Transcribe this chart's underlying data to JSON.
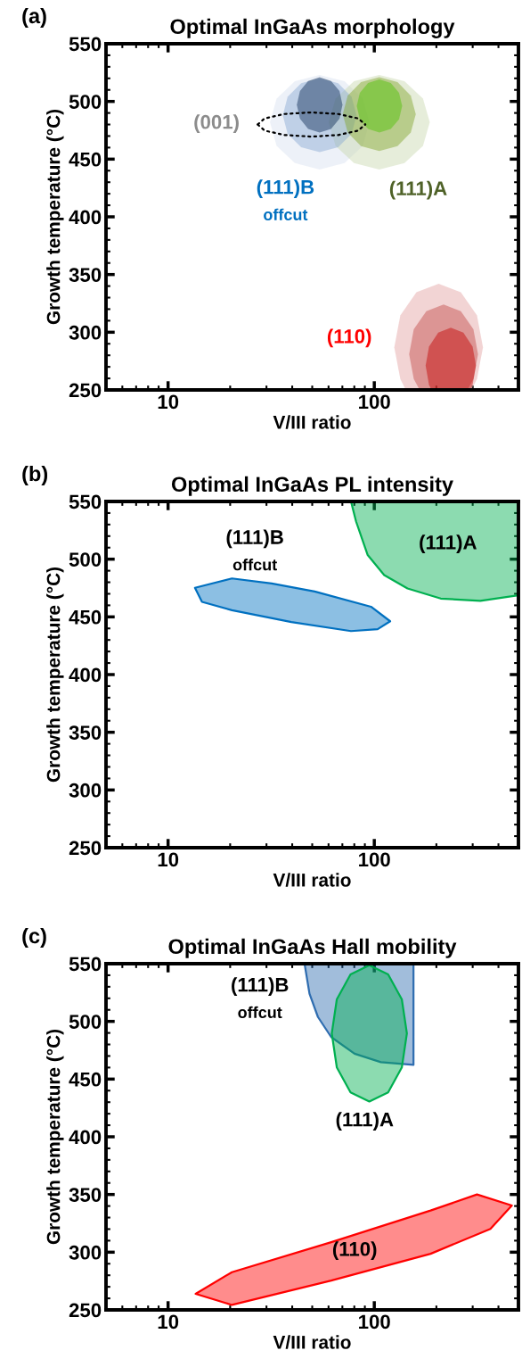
{
  "chart_data": [
    {
      "type": "area",
      "title": "Optimal InGaAs morphology",
      "xlabel": "V/III ratio",
      "ylabel": "Growth temperature (°C)",
      "log": "x",
      "xlim": [
        5,
        500
      ],
      "xticks": [
        10,
        100
      ],
      "ylim": [
        250,
        550
      ],
      "yticks": [
        250,
        300,
        350,
        400,
        450,
        500,
        550
      ],
      "series": [
        {
          "color": "#d7e0f0",
          "x": [
            94.6,
            87.9,
            71.7,
            54.3,
            41.2,
            33.6,
            31.2,
            33.6,
            41.2,
            54.3,
            71.7,
            87.9
          ],
          "values": [
            482,
            502.5,
            517.5,
            523,
            517.5,
            502.5,
            482,
            461.5,
            446.5,
            441,
            446.5,
            461.5
          ]
        },
        {
          "color": "#c8d8ad",
          "x": [
            185.8,
            172.2,
            140.1,
            105.7,
            79.7,
            64.9,
            60.1,
            64.9,
            79.7,
            105.7,
            140.1,
            172.2
          ],
          "values": [
            482,
            502.5,
            517.5,
            523,
            517.5,
            502.5,
            482,
            461.5,
            446.5,
            441,
            446.5,
            461.5
          ]
        },
        {
          "color": "#88a9d3",
          "x": [
            82.0,
            77.6,
            66.8,
            54.3,
            44.2,
            38.0,
            36.0,
            38.0,
            44.2,
            54.3,
            66.8,
            77.6
          ],
          "values": [
            488,
            504,
            515.7,
            520,
            515.7,
            504,
            488,
            472,
            460.3,
            456,
            460.3,
            472
          ]
        },
        {
          "color": "#81a42a",
          "x": [
            158.9,
            150.3,
            129.6,
            105.7,
            86.2,
            74.3,
            70.3,
            74.3,
            86.2,
            105.7,
            129.6,
            150.3
          ],
          "values": [
            489,
            505,
            516.7,
            521,
            516.7,
            505,
            489,
            473,
            461.3,
            457,
            461.3,
            473
          ]
        },
        {
          "color": "#0a2a55",
          "x": [
            70.1,
            67.8,
            61.7,
            54.3,
            47.8,
            43.6,
            42.1,
            43.6,
            47.8,
            54.3,
            61.7,
            67.8
          ],
          "values": [
            497,
            509,
            517.8,
            521,
            517.8,
            509,
            497,
            485,
            476.2,
            473,
            476.2,
            485
          ]
        },
        {
          "color": "#4cc000",
          "x": [
            136.5,
            131.8,
            120.2,
            105.9,
            93.3,
            85.1,
            82.2,
            85.1,
            93.3,
            105.9,
            120.2,
            131.8
          ],
          "values": [
            496,
            507.5,
            515.9,
            519,
            515.9,
            507.5,
            496,
            484.5,
            476.1,
            473,
            476.1,
            484.5
          ]
        },
        {
          "type": "line",
          "color": "#000000",
          "line_style": "dotted",
          "x": [
            27.2,
            29.4,
            36.7,
            49.5,
            66.9,
            83.4,
            90.4
          ],
          "values": [
            480,
            485.3,
            489.1,
            490.5,
            489.1,
            485.3,
            480
          ]
        },
        {
          "type": "line",
          "color": "#000000",
          "line_style": "dotted",
          "x": [
            27.2,
            29.4,
            36.7,
            49.5,
            66.9,
            83.4,
            90.4
          ],
          "values": [
            480,
            474.7,
            470.9,
            469.5,
            470.9,
            474.7,
            480
          ]
        },
        {
          "color": "#e3a0a0",
          "x": [
            336.5,
            314.8,
            262.8,
            205.1,
            160.1,
            133.7,
            125.0,
            133.7,
            142.2,
            295.8,
            314.8
          ],
          "values": [
            287,
            314.5,
            334.6,
            342,
            334.6,
            314.5,
            287,
            259.5,
            250,
            250,
            259.5
          ]
        },
        {
          "color": "#c04a48",
          "x": [
            318.4,
            302.5,
            262.8,
            216.8,
            178.8,
            155.4,
            147.6,
            155.4,
            166.0,
            283.1,
            302.5
          ],
          "values": [
            281,
            302.5,
            318.2,
            324,
            318.2,
            302.5,
            281,
            259.5,
            250,
            250,
            259.5
          ]
        },
        {
          "color": "#c00000",
          "x": [
            311.2,
            299.7,
            270.4,
            235.0,
            204.2,
            184.2,
            177.4,
            184.2,
            189.2,
            291.7,
            299.7
          ],
          "values": [
            271,
            287.5,
            299.6,
            304,
            299.6,
            287.5,
            271,
            254.5,
            250,
            250,
            254.5
          ]
        }
      ],
      "annotations": [
        "(a)",
        "(001)",
        "(111)B\noffcut",
        "(111)A",
        "(110)"
      ]
    },
    {
      "type": "area",
      "title": "Optimal InGaAs PL intensity",
      "xlabel": "V/III ratio",
      "ylabel": "Growth temperature (°C)",
      "log": "x",
      "xlim": [
        5,
        500
      ],
      "xticks": [
        10,
        100
      ],
      "ylim": [
        250,
        550
      ],
      "yticks": [
        250,
        300,
        350,
        400,
        450,
        500,
        550
      ],
      "series": [
        {
          "color": "#0070c0",
          "line_style": "solid",
          "x": [
            13.5,
            20.4,
            31.8,
            51.4,
            96.4,
            119.4,
            103.8,
            77.1,
            39.6,
            20.4,
            14.6
          ],
          "values": [
            475.2,
            483.3,
            479,
            472,
            458.8,
            446.2,
            439.3,
            437.7,
            445.5,
            455.8,
            463
          ]
        },
        {
          "color": "#00b050",
          "line_style": "solid",
          "x": [
            77.1,
            81.6,
            92.9,
            111.7,
            144.9,
            209.9,
            326.6,
            500,
            500
          ],
          "values": [
            550,
            532.6,
            503.6,
            486.2,
            474.6,
            465.9,
            463.9,
            468.8,
            550
          ]
        }
      ],
      "annotations": [
        "(b)",
        "(111)B\noffcut",
        "(111)A"
      ]
    },
    {
      "type": "area",
      "title": "Optimal InGaAs Hall mobility",
      "xlabel": "V/III ratio",
      "ylabel": "Growth temperature (°C)",
      "log": "x",
      "xlim": [
        5,
        500
      ],
      "xticks": [
        10,
        100
      ],
      "ylim": [
        250,
        550
      ],
      "yticks": [
        250,
        300,
        350,
        400,
        450,
        500,
        550
      ],
      "series": [
        {
          "color": "#2f6db0",
          "line_style": "solid",
          "x": [
            45.9,
            48.5,
            53.3,
            61.8,
            80.2,
            107.6,
            154.9,
            154.9
          ],
          "values": [
            550,
            524,
            503.8,
            486.4,
            472,
            464.7,
            462.4,
            550
          ]
        },
        {
          "color": "#00b050",
          "line_style": "solid",
          "x": [
            143.9,
            136.0,
            116.7,
            94.6,
            76.7,
            65.8,
            62.2,
            65.8,
            76.7,
            94.6,
            116.7,
            136.0
          ],
          "values": [
            489.6,
            519.1,
            540.7,
            548.6,
            540.7,
            519.1,
            489.6,
            460.1,
            438.5,
            430.6,
            438.5,
            460.1
          ]
        },
        {
          "color": "#ff0000",
          "line_style": "solid",
          "x": [
            13.6,
            20.4,
            61.8,
            187.5,
            314.8,
            464.5,
            365.6,
            187.5,
            61.8,
            20.4
          ],
          "values": [
            263.9,
            282.7,
            308.7,
            336.1,
            350,
            340.5,
            320.2,
            298.6,
            275.4,
            254.3
          ]
        }
      ],
      "annotations": [
        "(c)",
        "(111)B\noffcut",
        "(111)A",
        "(110)"
      ]
    }
  ]
}
